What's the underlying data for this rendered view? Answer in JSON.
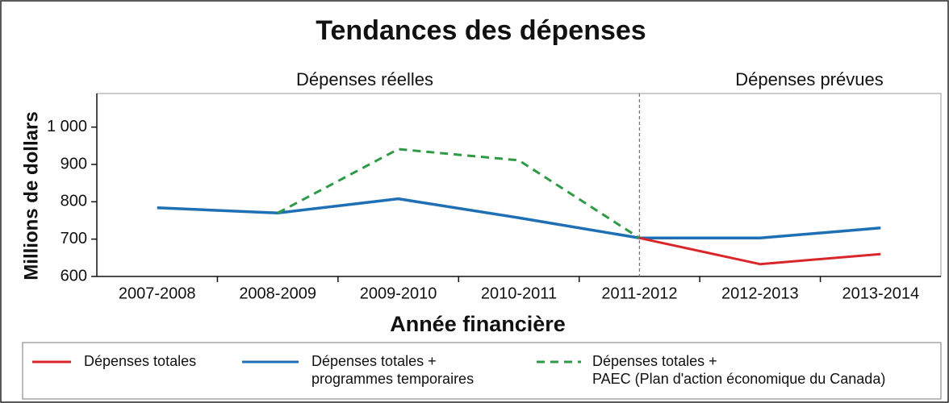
{
  "chart_data": {
    "type": "line",
    "title": "Tendances des dépenses",
    "annotations": [
      "Dépenses réelles",
      "Dépenses prévues"
    ],
    "y_label": "Millions de dollars",
    "x_label": "Année financière",
    "categories": [
      "2007-2008",
      "2008-2009",
      "2009-2010",
      "2010-2011",
      "2011-2012",
      "2012-2013",
      "2013-2014"
    ],
    "series": [
      {
        "name": "Dépenses totales",
        "color": "#d9262b",
        "dash": false,
        "values": [
          null,
          null,
          null,
          null,
          703,
          633,
          660
        ]
      },
      {
        "name": "Dépenses totales +\nprogrammes temporaires",
        "color": "#1f6fb4",
        "dash": false,
        "values": [
          784,
          770,
          808,
          757,
          703,
          703,
          730
        ]
      },
      {
        "name": "Dépenses totales +\nPAEC (Plan d'action économique du Canada)",
        "color": "#2e9a45",
        "dash": true,
        "values": [
          null,
          770,
          941,
          911,
          703,
          null,
          null
        ]
      }
    ],
    "ylim": [
      600,
      1090
    ],
    "yticks": [
      600,
      700,
      800,
      900,
      {
        "value": 1000,
        "label": "1 000"
      }
    ],
    "grid": false
  }
}
